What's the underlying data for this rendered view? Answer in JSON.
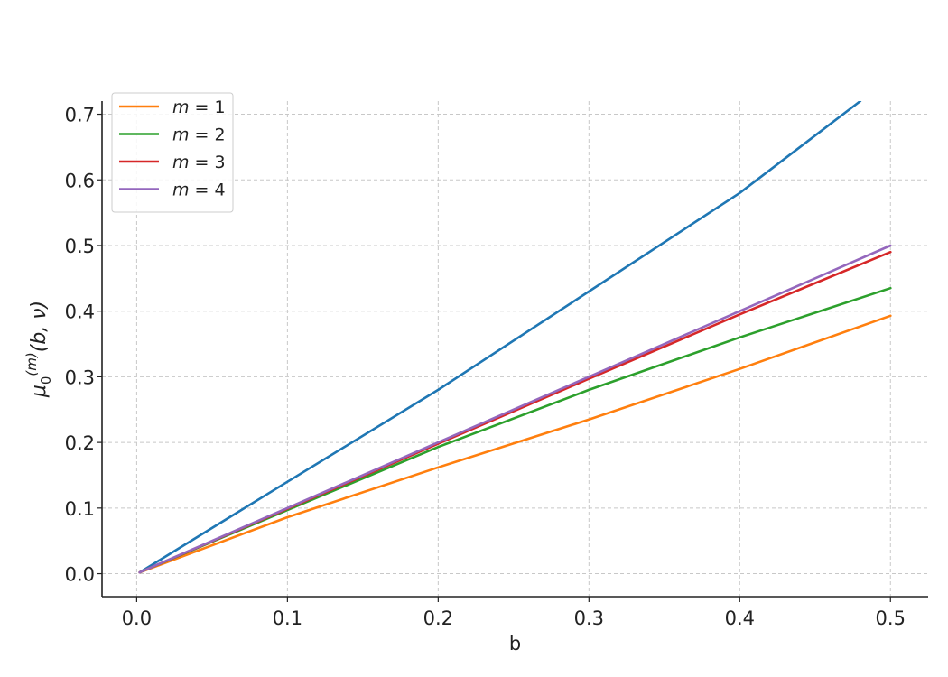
{
  "chart_data": {
    "type": "line",
    "title": "",
    "xlabel": "b",
    "ylabel": {
      "base": "μ",
      "subscript": "0",
      "superscript": "(m)",
      "args": "(b, ν)"
    },
    "xlim": [
      -0.023,
      0.525
    ],
    "ylim": [
      -0.035,
      0.72
    ],
    "xticks": [
      "0.0",
      "0.1",
      "0.2",
      "0.3",
      "0.4",
      "0.5"
    ],
    "xtick_values": [
      0.0,
      0.1,
      0.2,
      0.3,
      0.4,
      0.5
    ],
    "yticks": [
      "0.0",
      "0.1",
      "0.2",
      "0.3",
      "0.4",
      "0.5",
      "0.6",
      "0.7"
    ],
    "ytick_values": [
      0.0,
      0.1,
      0.2,
      0.3,
      0.4,
      0.5,
      0.6,
      0.7
    ],
    "grid": true,
    "legend_position": "top-left",
    "series": [
      {
        "name": "",
        "color": "#1f77b4",
        "x": [
          0.002,
          0.1,
          0.2,
          0.3,
          0.4,
          0.48
        ],
        "y": [
          0.002,
          0.14,
          0.28,
          0.43,
          0.58,
          0.72
        ]
      },
      {
        "name": "m = 1",
        "var": "m",
        "value": "1",
        "color": "#ff7f0e",
        "x": [
          0.002,
          0.1,
          0.2,
          0.3,
          0.4,
          0.5
        ],
        "y": [
          0.002,
          0.086,
          0.162,
          0.235,
          0.312,
          0.393
        ]
      },
      {
        "name": "m = 2",
        "var": "m",
        "value": "2",
        "color": "#2ca02c",
        "x": [
          0.002,
          0.1,
          0.2,
          0.3,
          0.4,
          0.5
        ],
        "y": [
          0.002,
          0.097,
          0.193,
          0.28,
          0.36,
          0.435
        ]
      },
      {
        "name": "m = 3",
        "var": "m",
        "value": "3",
        "color": "#d62728",
        "x": [
          0.002,
          0.1,
          0.2,
          0.3,
          0.4,
          0.5
        ],
        "y": [
          0.002,
          0.099,
          0.198,
          0.297,
          0.395,
          0.49
        ]
      },
      {
        "name": "m = 4",
        "var": "m",
        "value": "4",
        "color": "#9467bd",
        "x": [
          0.002,
          0.1,
          0.2,
          0.3,
          0.4,
          0.5
        ],
        "y": [
          0.002,
          0.1,
          0.2,
          0.3,
          0.4,
          0.5
        ]
      }
    ]
  }
}
